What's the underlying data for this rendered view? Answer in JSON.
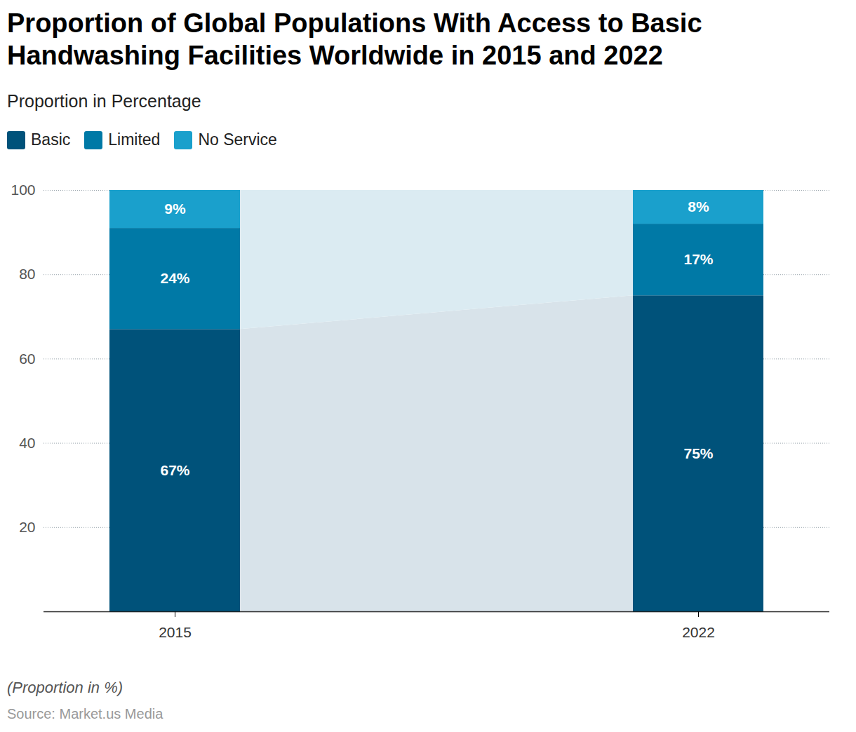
{
  "chart_data": {
    "type": "bar",
    "title": "Proportion of Global Populations With Access to Basic Handwashing Facilities Worldwide in 2015 and 2022",
    "subtitle": "Proportion in Percentage",
    "caption": "(Proportion in %)",
    "source": "Source: Market.us Media",
    "categories": [
      "2015",
      "2022"
    ],
    "series": [
      {
        "name": "Basic",
        "color": "#00527a",
        "values": [
          67,
          75
        ],
        "value_labels": [
          "67%",
          "75%"
        ]
      },
      {
        "name": "Limited",
        "color": "#0079a6",
        "values": [
          24,
          17
        ],
        "value_labels": [
          "24%",
          "17%"
        ]
      },
      {
        "name": "No Service",
        "color": "#1aa0cc",
        "values": [
          9,
          8
        ],
        "value_labels": [
          "9%",
          "8%"
        ]
      }
    ],
    "stacked": true,
    "data_labels": true,
    "legend": "top-left",
    "grid": true,
    "ylim": [
      0,
      100
    ],
    "yticks": [
      20,
      40,
      60,
      80,
      100
    ]
  }
}
